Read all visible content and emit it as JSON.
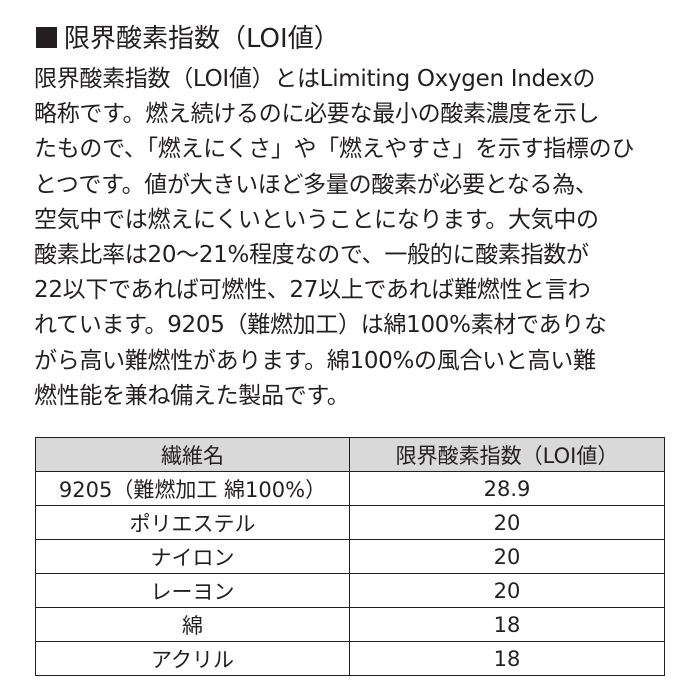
{
  "heading": "限界酸素指数（LOI値）",
  "paragraph": [
    "限界酸素指数（LOI値）とはLimiting Oxygen Indexの",
    "略称です。燃え続けるのに必要な最小の酸素濃度を示し",
    "たもので、「燃えにくさ」や「燃えやすさ」を示す指標のひ",
    "とつです。値が大きいほど多量の酸素が必要となる為、",
    "空気中では燃えにくいということになります。大気中の",
    "酸素比率は20～21%程度なので、一般的に酸素指数が",
    "22以下であれば可燃性、27以上であれば難燃性と言わ",
    "れています。9205（難燃加工）は綿100%素材でありな",
    "がら高い難燃性があります。綿100%の風合いと高い難",
    "燃性能を兼ね備えた製品です。"
  ],
  "table": {
    "header": [
      "繊維名",
      "限界酸素指数（LOI値）"
    ],
    "rows": [
      [
        "9205（難燃加工 綿100%）",
        28.9
      ],
      [
        "ポリエステル",
        20
      ],
      [
        "ナイロン",
        20
      ],
      [
        "レーヨン",
        20
      ],
      [
        "綿",
        18
      ],
      [
        "アクリル",
        18
      ]
    ]
  }
}
